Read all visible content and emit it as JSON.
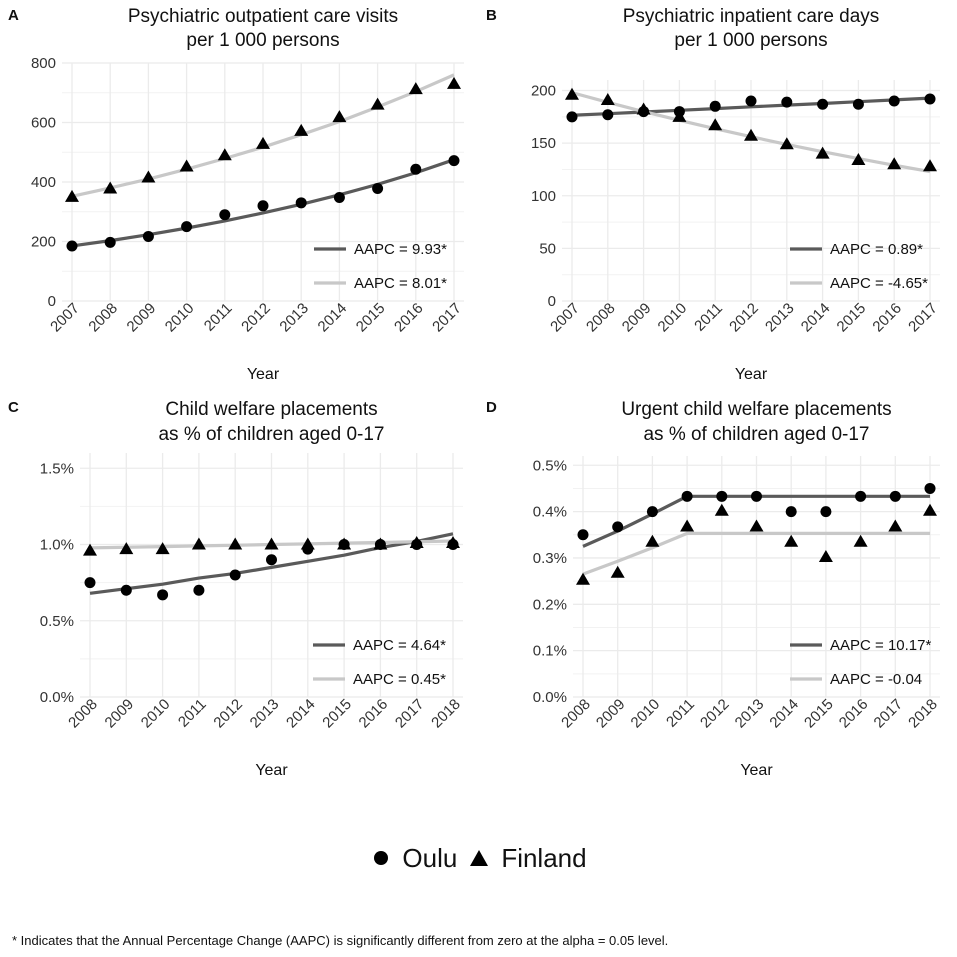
{
  "legend": {
    "oulu": "Oulu",
    "finland": "Finland"
  },
  "footnote": "* Indicates that the Annual Percentage Change (AAPC) is significantly different from zero at the alpha = 0.05 level.",
  "colors": {
    "oulu_line": "#5a5a5a",
    "finland_line": "#c8c8c8",
    "grid": "#ebebeb",
    "marker": "#000000"
  },
  "chart_data": [
    {
      "panel": "A",
      "type": "line",
      "title": [
        "Psychiatric outpatient care visits",
        "per 1 000 persons"
      ],
      "xlabel": "Year",
      "ylabel": "",
      "x": [
        "2007",
        "2008",
        "2009",
        "2010",
        "2011",
        "2012",
        "2013",
        "2014",
        "2015",
        "2016",
        "2017"
      ],
      "ylim": [
        0,
        800
      ],
      "yticks": [
        0,
        200,
        400,
        600,
        800
      ],
      "ytick_labels": [
        "0",
        "200",
        "400",
        "600",
        "800"
      ],
      "series": [
        {
          "name": "Oulu",
          "marker": "circle",
          "line": "dark",
          "values": [
            185,
            197,
            217,
            250,
            290,
            320,
            330,
            348,
            378,
            443,
            472
          ],
          "fit": [
            185,
            203,
            223,
            245,
            269,
            296,
            325,
            357,
            392,
            431,
            475
          ],
          "aapc": "AAPC = 9.93*"
        },
        {
          "name": "Finland",
          "marker": "triangle",
          "line": "light",
          "values": [
            350,
            378,
            415,
            452,
            490,
            528,
            572,
            618,
            660,
            712,
            730
          ],
          "fit": [
            352,
            380,
            410,
            443,
            479,
            517,
            559,
            603,
            652,
            704,
            760
          ],
          "aapc": "AAPC = 8.01*"
        }
      ]
    },
    {
      "panel": "B",
      "type": "line",
      "title": [
        "Psychiatric inpatient care days",
        "per 1 000 persons"
      ],
      "xlabel": "Year",
      "ylabel": "",
      "x": [
        "2007",
        "2008",
        "2009",
        "2010",
        "2011",
        "2012",
        "2013",
        "2014",
        "2015",
        "2016",
        "2017"
      ],
      "ylim": [
        0,
        210
      ],
      "yticks": [
        0,
        50,
        100,
        150,
        200
      ],
      "ytick_labels": [
        "0",
        "50",
        "100",
        "150",
        "200"
      ],
      "series": [
        {
          "name": "Oulu",
          "marker": "circle",
          "line": "dark",
          "values": [
            175,
            177,
            180,
            180,
            185,
            190,
            189,
            187,
            187,
            190,
            192
          ],
          "fit": [
            176.5,
            178,
            179.6,
            181.2,
            182.8,
            184.5,
            186.1,
            187.7,
            189.4,
            191.1,
            192.8
          ],
          "aapc": "AAPC = 0.89*"
        },
        {
          "name": "Finland",
          "marker": "triangle",
          "line": "light",
          "values": [
            196,
            191,
            182,
            175,
            167,
            157,
            149,
            140,
            134,
            130,
            128
          ],
          "fit": [
            198,
            188.8,
            180,
            171.7,
            163.7,
            156.1,
            148.8,
            141.9,
            135.3,
            129,
            123
          ],
          "aapc": "AAPC = -4.65*"
        }
      ]
    },
    {
      "panel": "C",
      "type": "line",
      "title": [
        "Child welfare placements",
        "as % of children aged 0-17"
      ],
      "xlabel": "Year",
      "ylabel": "",
      "x": [
        "2008",
        "2009",
        "2010",
        "2011",
        "2012",
        "2013",
        "2014",
        "2015",
        "2016",
        "2017",
        "2018"
      ],
      "ylim": [
        0,
        1.6
      ],
      "yticks": [
        0,
        0.5,
        1.0,
        1.5
      ],
      "ytick_labels": [
        "0.0%",
        "0.5%",
        "1.0%",
        "1.5%"
      ],
      "series": [
        {
          "name": "Oulu",
          "marker": "circle",
          "line": "dark",
          "values": [
            0.75,
            0.7,
            0.67,
            0.7,
            0.8,
            0.9,
            0.97,
            1.0,
            1.0,
            1.0,
            1.0
          ],
          "fit": [
            0.68,
            0.71,
            0.74,
            0.78,
            0.81,
            0.85,
            0.89,
            0.93,
            0.98,
            1.02,
            1.07
          ],
          "aapc": "AAPC = 4.64*"
        },
        {
          "name": "Finland",
          "marker": "triangle",
          "line": "light",
          "values": [
            0.96,
            0.97,
            0.97,
            1.0,
            1.0,
            1.0,
            1.0,
            1.0,
            1.0,
            1.01,
            1.01
          ],
          "fit": [
            0.978,
            0.982,
            0.986,
            0.991,
            0.995,
            1.0,
            1.004,
            1.009,
            1.013,
            1.018,
            1.023
          ],
          "aapc": "AAPC = 0.45*"
        }
      ]
    },
    {
      "panel": "D",
      "type": "line",
      "title": [
        "Urgent child welfare placements",
        "as % of children aged 0-17"
      ],
      "xlabel": "Year",
      "ylabel": "",
      "x": [
        "2008",
        "2009",
        "2010",
        "2011",
        "2012",
        "2013",
        "2014",
        "2015",
        "2016",
        "2017",
        "2018"
      ],
      "ylim": [
        0,
        0.52
      ],
      "yticks": [
        0,
        0.1,
        0.2,
        0.3,
        0.4,
        0.5
      ],
      "ytick_labels": [
        "0.0%",
        "0.1%",
        "0.2%",
        "0.3%",
        "0.4%",
        "0.5%"
      ],
      "series": [
        {
          "name": "Oulu",
          "marker": "circle",
          "line": "dark",
          "values": [
            0.35,
            0.367,
            0.4,
            0.433,
            0.433,
            0.433,
            0.4,
            0.4,
            0.433,
            0.433,
            0.45
          ],
          "fit": [
            0.325,
            0.358,
            0.395,
            0.433,
            0.433,
            0.433,
            0.433,
            0.433,
            0.433,
            0.433,
            0.433
          ],
          "aapc": "AAPC = 10.17*"
        },
        {
          "name": "Finland",
          "marker": "triangle",
          "line": "light",
          "values": [
            0.253,
            0.268,
            0.335,
            0.368,
            0.402,
            0.368,
            0.335,
            0.302,
            0.335,
            0.368,
            0.402
          ],
          "fit": [
            0.265,
            0.293,
            0.322,
            0.353,
            0.353,
            0.353,
            0.353,
            0.353,
            0.353,
            0.353,
            0.353
          ],
          "aapc": "AAPC = -0.04"
        }
      ]
    }
  ]
}
